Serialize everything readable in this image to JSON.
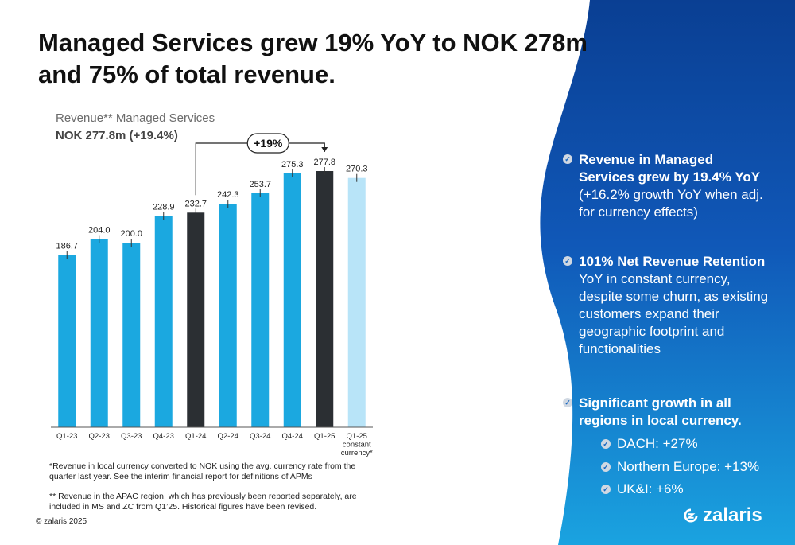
{
  "headline": "Managed Services grew 19% YoY to NOK 278m and 75% of total revenue.",
  "chart_data": {
    "type": "bar",
    "title": "Revenue** Managed Services",
    "subtitle": "NOK 277.8m (+19.4%)",
    "categories": [
      "Q1-23",
      "Q2-23",
      "Q3-23",
      "Q4-23",
      "Q1-24",
      "Q2-24",
      "Q3-24",
      "Q4-24",
      "Q1-25",
      "Q1-25 constant currency*"
    ],
    "category_lines": [
      [
        "Q1-23"
      ],
      [
        "Q2-23"
      ],
      [
        "Q3-23"
      ],
      [
        "Q4-23"
      ],
      [
        "Q1-24"
      ],
      [
        "Q2-24"
      ],
      [
        "Q3-24"
      ],
      [
        "Q4-24"
      ],
      [
        "Q1-25"
      ],
      [
        "Q1-25",
        "constant",
        "currency*"
      ]
    ],
    "values": [
      186.7,
      204.0,
      200.0,
      228.9,
      232.7,
      242.3,
      253.7,
      275.3,
      277.8,
      270.3
    ],
    "value_labels": [
      "186.7",
      "204.0",
      "200.0",
      "228.9",
      "232.7",
      "242.3",
      "253.7",
      "275.3",
      "277.8",
      "270.3"
    ],
    "ylim": [
      0,
      290
    ],
    "bar_colors": [
      "#1ba8e0",
      "#1ba8e0",
      "#1ba8e0",
      "#1ba8e0",
      "#2b2f33",
      "#1ba8e0",
      "#1ba8e0",
      "#1ba8e0",
      "#2b2f33",
      "#b8e4f8"
    ],
    "annotation": {
      "label": "+19%",
      "from": "Q1-24",
      "to": "Q1-25"
    },
    "grid": false,
    "legend": "none"
  },
  "footnotes": {
    "note1": "*Revenue in local currency converted to NOK using the avg. currency rate from the quarter last year. See the interim financial report for definitions of APMs",
    "note2": "** Revenue in the APAC region, which has previously been reported separately, are included in MS and ZC from Q1’25. Historical figures have been revised."
  },
  "copyright": "© zalaris 2025",
  "bullets": {
    "b1_bold": "Revenue in Managed Services grew by 19.4% YoY",
    "b1_rest": " (+16.2% growth YoY when adj. for currency effects)",
    "b2_bold": "101% Net Revenue Retention",
    "b2_rest": " YoY in constant currency, despite some churn, as existing customers expand their geographic footprint and functionalities",
    "b3_bold": "Significant growth in all regions in local currency.",
    "sub": [
      "DACH: +27%",
      "Northern Europe: +13%",
      "UK&I: +6%"
    ]
  },
  "logo_text": "zalaris",
  "icons": {
    "bullet": "check-circle-icon",
    "logo": "zalaris-logo-icon"
  },
  "colors": {
    "accent_blue": "#1ba8e0",
    "highlight_dark": "#2b2f33",
    "constant_currency": "#b8e4f8",
    "panel_blue": "#0d47a1"
  }
}
